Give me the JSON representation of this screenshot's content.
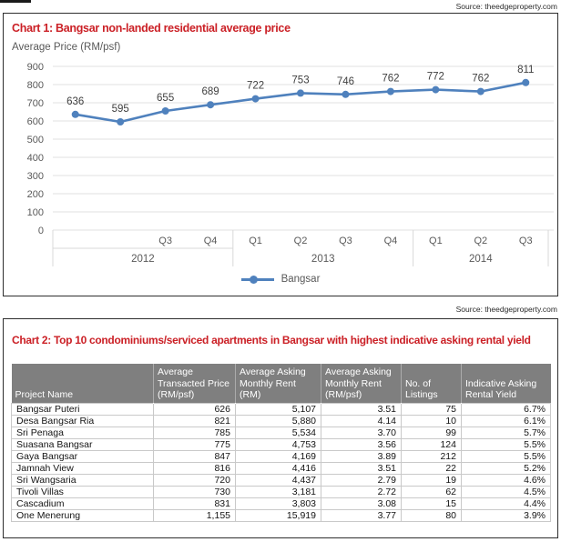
{
  "page": {
    "source_top": "Source: theedgeproperty.com",
    "source_mid": "Source: theedgeproperty.com"
  },
  "chart_data": [
    {
      "type": "line",
      "title": "Chart 1: Bangsar non-landed residential average price",
      "axis_title": "Average Price (RM/psf)",
      "categories": [
        "",
        "",
        "Q3",
        "Q4",
        "Q1",
        "Q2",
        "Q3",
        "Q4",
        "Q1",
        "Q2",
        "Q3"
      ],
      "year_groups": [
        {
          "label": "2012",
          "span": 4
        },
        {
          "label": "2013",
          "span": 4
        },
        {
          "label": "2014",
          "span": 3
        }
      ],
      "series": [
        {
          "name": "Bangsar",
          "values": [
            636,
            595,
            655,
            689,
            722,
            753,
            746,
            762,
            772,
            762,
            811
          ]
        }
      ],
      "ylim": [
        0,
        900
      ],
      "ytick_step": 100,
      "grid": true,
      "legend_position": "bottom",
      "line_color": "#4f81bd",
      "label_color": "#3f3f3f",
      "axis_color": "#595959",
      "grid_color": "#e0e0e0"
    },
    {
      "type": "table",
      "title": "Chart 2: Top 10 condominiums/serviced apartments in Bangsar with highest indicative asking rental yield",
      "columns": [
        "Project Name",
        "Average\nTransacted Price\n(RM/psf)",
        "Average Asking\nMonthly Rent\n(RM)",
        "Average Asking\nMonthly Rent\n(RM/psf)",
        "No. of\nListings",
        "Indicative Asking\nRental Yield"
      ],
      "rows": [
        [
          "Bangsar Puteri",
          "626",
          "5,107",
          "3.51",
          "75",
          "6.7%"
        ],
        [
          "Desa Bangsar Ria",
          "821",
          "5,880",
          "4.14",
          "10",
          "6.1%"
        ],
        [
          "Sri Penaga",
          "785",
          "5,534",
          "3.70",
          "99",
          "5.7%"
        ],
        [
          "Suasana Bangsar",
          "775",
          "4,753",
          "3.56",
          "124",
          "5.5%"
        ],
        [
          "Gaya Bangsar",
          "847",
          "4,169",
          "3.89",
          "212",
          "5.5%"
        ],
        [
          "Jamnah View",
          "816",
          "4,416",
          "3.51",
          "22",
          "5.2%"
        ],
        [
          "Sri Wangsaria",
          "720",
          "4,437",
          "2.79",
          "19",
          "4.6%"
        ],
        [
          "Tivoli Villas",
          "730",
          "3,181",
          "2.72",
          "62",
          "4.5%"
        ],
        [
          "Cascadium",
          "831",
          "3,803",
          "3.08",
          "15",
          "4.4%"
        ],
        [
          "One Menerung",
          "1,155",
          "15,919",
          "3.77",
          "80",
          "3.9%"
        ]
      ],
      "header_bg": "#7f7f7f",
      "title_color": "#cb2026"
    }
  ]
}
